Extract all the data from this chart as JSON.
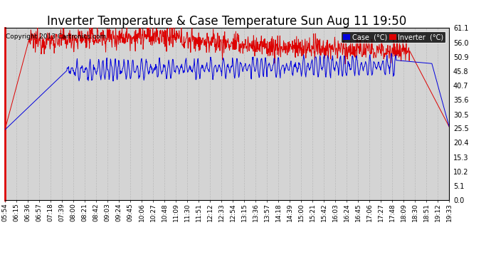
{
  "title": "Inverter Temperature & Case Temperature Sun Aug 11 19:50",
  "copyright": "Copyright 2013 Cartronics.com",
  "ylabel_right_ticks": [
    0.0,
    5.1,
    10.2,
    15.3,
    20.4,
    25.5,
    30.5,
    35.6,
    40.7,
    45.8,
    50.9,
    56.0,
    61.1
  ],
  "ymin": 0.0,
  "ymax": 61.1,
  "legend_case_label": "Case  (°C)",
  "legend_inverter_label": "Inverter  (°C)",
  "case_color": "#0000dd",
  "inverter_color": "#dd0000",
  "background_color": "#ffffff",
  "plot_bg_color": "#d4d4d4",
  "grid_color": "#bbbbbb",
  "title_fontsize": 12,
  "tick_fontsize": 7,
  "x_tick_labels": [
    "05:54",
    "06:15",
    "06:36",
    "06:57",
    "07:18",
    "07:39",
    "08:00",
    "08:21",
    "08:42",
    "09:03",
    "09:24",
    "09:45",
    "10:06",
    "10:27",
    "10:48",
    "11:09",
    "11:30",
    "11:51",
    "12:12",
    "12:33",
    "12:54",
    "13:15",
    "13:36",
    "13:57",
    "14:18",
    "14:39",
    "15:00",
    "15:21",
    "15:42",
    "16:03",
    "16:24",
    "16:45",
    "17:06",
    "17:27",
    "17:48",
    "18:09",
    "18:30",
    "18:51",
    "19:12",
    "19:33"
  ]
}
